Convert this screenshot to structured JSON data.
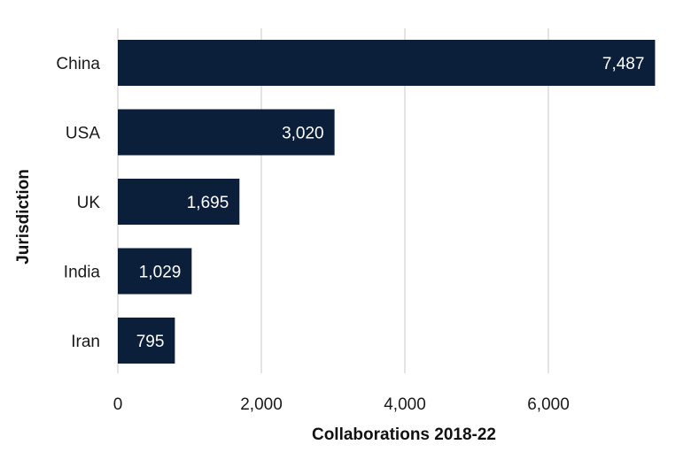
{
  "chart_data": {
    "type": "bar",
    "orientation": "horizontal",
    "categories": [
      "China",
      "USA",
      "UK",
      "India",
      "Iran"
    ],
    "values": [
      7487,
      3020,
      1695,
      1029,
      795
    ],
    "value_labels": [
      "7,487",
      "3,020",
      "1,695",
      "1,029",
      "795"
    ],
    "xlabel": "Collaborations 2018-22",
    "ylabel": "Jurisdiction",
    "xlim": [
      0,
      8000
    ],
    "x_ticks": [
      0,
      2000,
      4000,
      6000
    ],
    "x_tick_labels": [
      "0",
      "2,000",
      "4,000",
      "6,000"
    ],
    "grid": "vertical",
    "legend": "none",
    "bar_color": "#0c1f3a",
    "grid_color": "#c8c8c8"
  }
}
